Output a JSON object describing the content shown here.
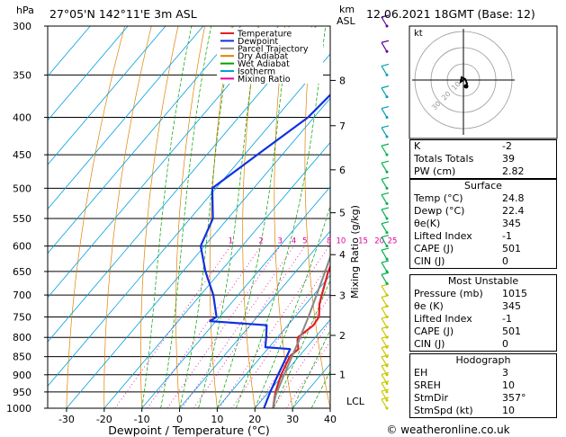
{
  "header": {
    "location": "27°05'N  142°11'E  3m  ASL",
    "datetime": "12.06.2021  18GMT  (Base: 12)"
  },
  "axes": {
    "y_unit": "hPa",
    "km_unit": "km",
    "asl_label": "ASL",
    "x_label": "Dewpoint / Temperature (°C)",
    "mixing_label": "Mixing Ratio (g/kg)",
    "lcl_label": "LCL",
    "pressure_ticks": [
      "300",
      "350",
      "400",
      "450",
      "500",
      "550",
      "600",
      "650",
      "700",
      "750",
      "800",
      "850",
      "900",
      "950",
      "1000"
    ],
    "temp_ticks": [
      "-30",
      "-20",
      "-10",
      "0",
      "10",
      "20",
      "30",
      "40"
    ],
    "km_ticks": [
      "1",
      "2",
      "3",
      "4",
      "5",
      "6",
      "7",
      "8"
    ],
    "mixing_ticks": [
      "1",
      "2",
      "3",
      "4",
      "5",
      "8",
      "10",
      "15",
      "20",
      "25"
    ]
  },
  "legend": [
    {
      "label": "Temperature",
      "color": "#e02020"
    },
    {
      "label": "Dewpoint",
      "color": "#1030e0"
    },
    {
      "label": "Parcel Trajectory",
      "color": "#888888"
    },
    {
      "label": "Dry Adiabat",
      "color": "#e08000"
    },
    {
      "label": "Wet Adiabat",
      "color": "#00a000"
    },
    {
      "label": "Isotherm",
      "color": "#00a0e0"
    },
    {
      "label": "Mixing Ratio",
      "color": "#e000a0"
    }
  ],
  "indices": [
    {
      "label": "K",
      "value": "-2"
    },
    {
      "label": "Totals Totals",
      "value": "39"
    },
    {
      "label": "PW (cm)",
      "value": "2.82"
    }
  ],
  "surface": {
    "title": "Surface",
    "rows": [
      {
        "label": "Temp (°C)",
        "value": "24.8"
      },
      {
        "label": "Dewp (°C)",
        "value": "22.4"
      },
      {
        "label": "θe(K)",
        "value": "345"
      },
      {
        "label": "Lifted Index",
        "value": "-1"
      },
      {
        "label": "CAPE (J)",
        "value": "501"
      },
      {
        "label": "CIN (J)",
        "value": "0"
      }
    ]
  },
  "most_unstable": {
    "title": "Most Unstable",
    "rows": [
      {
        "label": "Pressure (mb)",
        "value": "1015"
      },
      {
        "label": "θe (K)",
        "value": "345"
      },
      {
        "label": "Lifted Index",
        "value": "-1"
      },
      {
        "label": "CAPE (J)",
        "value": "501"
      },
      {
        "label": "CIN (J)",
        "value": "0"
      }
    ]
  },
  "hodograph": {
    "title": "Hodograph",
    "kt_label": "kt",
    "rows": [
      {
        "label": "EH",
        "value": "3"
      },
      {
        "label": "SREH",
        "value": "10"
      },
      {
        "label": "StmDir",
        "value": "357°"
      },
      {
        "label": "StmSpd (kt)",
        "value": "10"
      }
    ]
  },
  "copyright": "© weatheronline.co.uk",
  "chart_data": {
    "type": "line",
    "xlim": [
      -35,
      40
    ],
    "ylim_hpa": [
      1000,
      300
    ],
    "log_pressure": true,
    "series": [
      {
        "name": "Temperature",
        "color": "#e02020",
        "points": [
          [
            1000,
            24.8
          ],
          [
            950,
            21.8
          ],
          [
            900,
            19.4
          ],
          [
            850,
            17.6
          ],
          [
            830,
            18.2
          ],
          [
            810,
            16.2
          ],
          [
            800,
            15.4
          ],
          [
            770,
            16.8
          ],
          [
            750,
            16.4
          ],
          [
            720,
            13.6
          ],
          [
            700,
            12.2
          ],
          [
            650,
            8.6
          ],
          [
            600,
            5.6
          ],
          [
            550,
            1.2
          ],
          [
            500,
            -4.6
          ],
          [
            450,
            -10.8
          ],
          [
            400,
            -18.2
          ],
          [
            350,
            -27.0
          ],
          [
            300,
            -37.0
          ]
        ]
      },
      {
        "name": "Dewpoint",
        "color": "#1030e0",
        "points": [
          [
            1000,
            22.4
          ],
          [
            950,
            20.4
          ],
          [
            900,
            18.6
          ],
          [
            850,
            16.8
          ],
          [
            830,
            16.0
          ],
          [
            825,
            9.0
          ],
          [
            800,
            7.0
          ],
          [
            770,
            4.4
          ],
          [
            760,
            -11.6
          ],
          [
            750,
            -10.8
          ],
          [
            700,
            -16.6
          ],
          [
            650,
            -24.0
          ],
          [
            600,
            -31.0
          ],
          [
            550,
            -34.0
          ],
          [
            500,
            -41.0
          ],
          [
            450,
            -36.6
          ],
          [
            400,
            -31.6
          ],
          [
            350,
            -30.0
          ],
          [
            340,
            -25.0
          ],
          [
            320,
            -26.6
          ],
          [
            300,
            -34.0
          ]
        ]
      },
      {
        "name": "Parcel Trajectory",
        "color": "#888888",
        "points": [
          [
            1000,
            24.8
          ],
          [
            960,
            22.6
          ],
          [
            950,
            22.2
          ],
          [
            900,
            20.2
          ],
          [
            850,
            18.2
          ],
          [
            800,
            16.0
          ],
          [
            750,
            13.6
          ],
          [
            700,
            10.8
          ],
          [
            650,
            7.8
          ],
          [
            600,
            4.4
          ],
          [
            550,
            0.6
          ],
          [
            500,
            -4.0
          ],
          [
            450,
            -9.4
          ],
          [
            400,
            -16.0
          ],
          [
            350,
            -24.0
          ],
          [
            300,
            -34.0
          ]
        ]
      }
    ]
  }
}
